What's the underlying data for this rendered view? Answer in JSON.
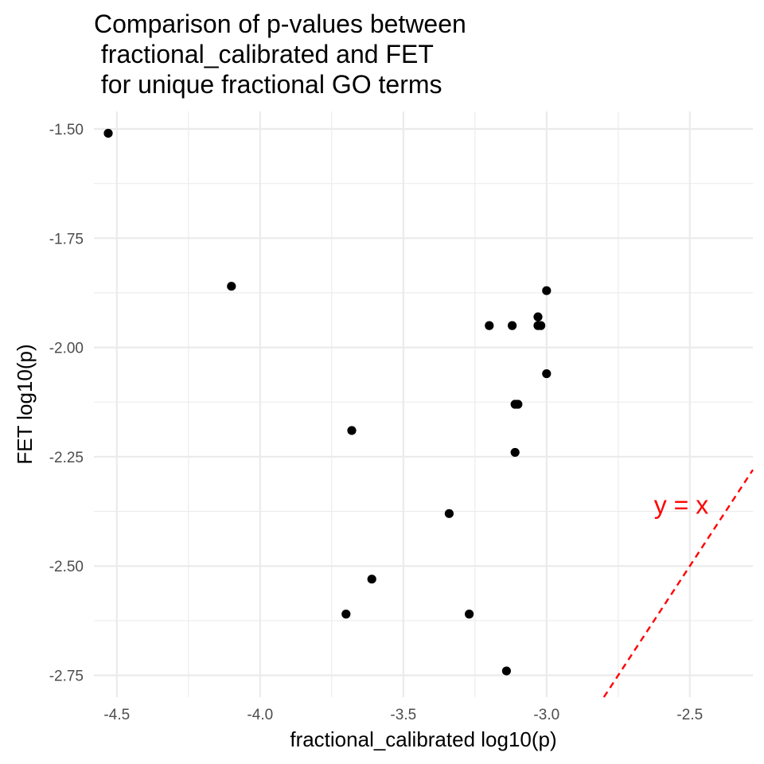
{
  "chart_data": {
    "type": "scatter",
    "title": [
      "Comparison of p-values between",
      " fractional_calibrated and FET",
      " for unique fractional GO terms"
    ],
    "xlabel": "fractional_calibrated log10(p)",
    "ylabel": "FET log10(p)",
    "xlim": [
      -4.58,
      -2.28
    ],
    "ylim": [
      -2.8,
      -1.46
    ],
    "x_ticks": [
      -4.5,
      -4.0,
      -3.5,
      -3.0,
      -2.5
    ],
    "x_tick_labels": [
      "-4.5",
      "-4.0",
      "-3.5",
      "-3.0",
      "-2.5"
    ],
    "y_ticks": [
      -1.5,
      -1.75,
      -2.0,
      -2.25,
      -2.5,
      -2.75
    ],
    "y_tick_labels": [
      "-1.50",
      "-1.75",
      "-2.00",
      "-2.25",
      "-2.50",
      "-2.75"
    ],
    "grid": true,
    "points": [
      {
        "x": -4.53,
        "y": -1.51
      },
      {
        "x": -4.1,
        "y": -1.86
      },
      {
        "x": -3.0,
        "y": -1.87
      },
      {
        "x": -3.03,
        "y": -1.93
      },
      {
        "x": -3.2,
        "y": -1.95
      },
      {
        "x": -3.12,
        "y": -1.95
      },
      {
        "x": -3.03,
        "y": -1.95
      },
      {
        "x": -3.02,
        "y": -1.95
      },
      {
        "x": -3.0,
        "y": -2.06
      },
      {
        "x": -3.11,
        "y": -2.13
      },
      {
        "x": -3.1,
        "y": -2.13
      },
      {
        "x": -3.68,
        "y": -2.19
      },
      {
        "x": -3.11,
        "y": -2.24
      },
      {
        "x": -3.34,
        "y": -2.38
      },
      {
        "x": -3.61,
        "y": -2.53
      },
      {
        "x": -3.7,
        "y": -2.61
      },
      {
        "x": -3.27,
        "y": -2.61
      },
      {
        "x": -3.14,
        "y": -2.74
      }
    ],
    "reference_line": {
      "slope": 1,
      "intercept": 0,
      "style": "dashed",
      "color": "#ff0000"
    },
    "annotations": [
      {
        "text": "y = x",
        "x": -2.53,
        "y": -2.36,
        "color": "#ff0000"
      }
    ],
    "point_color": "#000000",
    "grid_color": "#ebebeb"
  }
}
